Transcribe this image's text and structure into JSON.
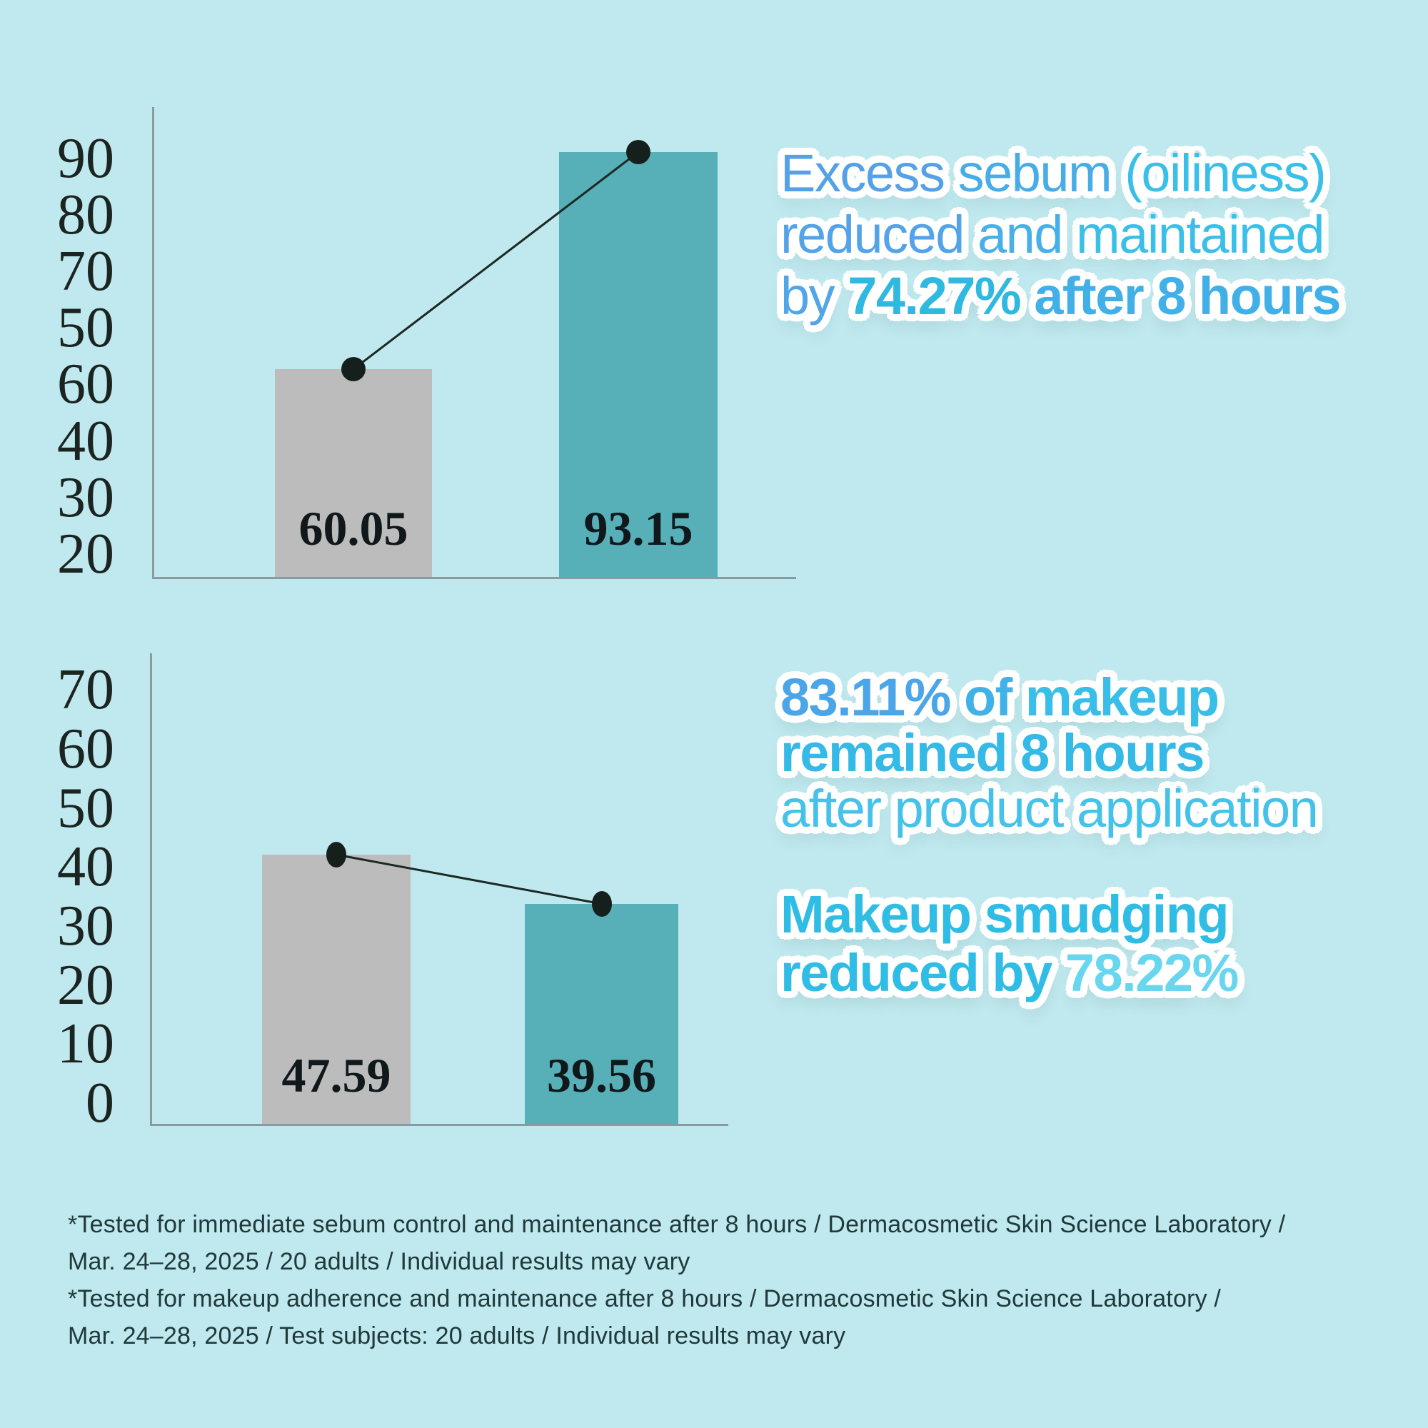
{
  "page": {
    "background": "#bfe9ee"
  },
  "palette": {
    "bar_gray": "#bcbcbc",
    "bar_teal": "#57b0b8",
    "axis_line": "#8a9ba0",
    "tick_text": "#1b2420",
    "bar_value_text": "#10181c",
    "connector": "#1c2824",
    "footnote_text": "#20393b",
    "headline_blue": "#54a2e8",
    "headline_cyan": "#38c0e8"
  },
  "chart_data": [
    {
      "type": "bar",
      "title": "",
      "y_tick_labels_as_printed": [
        "90",
        "80",
        "70",
        "50",
        "60",
        "40",
        "30",
        "20"
      ],
      "categories": [
        "",
        ""
      ],
      "values": [
        60.05,
        93.15
      ],
      "bar_labels": [
        "60.05",
        "93.15"
      ],
      "series_colors": [
        "#bcbcbc",
        "#57b0b8"
      ],
      "overlay": "line with dots connecting bar tops",
      "grid": false,
      "legend": false
    },
    {
      "type": "bar",
      "title": "",
      "y_tick_labels_as_printed": [
        "70",
        "60",
        "50",
        "40",
        "30",
        "20",
        "10",
        "0"
      ],
      "categories": [
        "",
        ""
      ],
      "values": [
        47.59,
        39.56
      ],
      "bar_labels": [
        "47.59",
        "39.56"
      ],
      "series_colors": [
        "#bcbcbc",
        "#57b0b8"
      ],
      "overlay": "line with dots connecting bar tops",
      "grid": false,
      "legend": false
    }
  ],
  "headlines": {
    "sebum": {
      "lines": [
        [
          {
            "t": "Excess ",
            "c": "#55a1e8",
            "b": 0
          },
          {
            "t": "sebum ",
            "c": "#47ade8",
            "b": 0
          },
          {
            "t": "(oiliness)",
            "c": "#39c0e8",
            "b": 0
          }
        ],
        [
          {
            "t": "reduced ",
            "c": "#53a3e8",
            "b": 0
          },
          {
            "t": "and ",
            "c": "#47b0e8",
            "b": 0
          },
          {
            "t": "maintained",
            "c": "#3ac0e8",
            "b": 0
          }
        ],
        [
          {
            "t": "by ",
            "c": "#50a6e8",
            "b": 0
          },
          {
            "t": "74.27%",
            "c": "#2fb9e0",
            "b": 1
          },
          {
            "t": " after 8 hours",
            "c": "#42b0e8",
            "b": 1
          }
        ]
      ]
    },
    "remained": {
      "lines": [
        [
          {
            "t": "83.11%",
            "c": "#4aa6e8",
            "b": 1
          },
          {
            "t": " of ",
            "c": "#41b2e8",
            "b": 1
          },
          {
            "t": "makeup",
            "c": "#38bee8",
            "b": 1
          }
        ],
        [
          {
            "t": "remained 8 hours",
            "c": "#35b9e7",
            "b": 1
          }
        ],
        [
          {
            "t": "after product application",
            "c": "#44c2ea",
            "b": 0
          }
        ]
      ]
    },
    "smudging": {
      "lines": [
        [
          {
            "t": "Makeup smudging",
            "c": "#2fbde6",
            "b": 1
          }
        ],
        [
          {
            "t": "reduced by ",
            "c": "#2fbde6",
            "b": 1
          },
          {
            "t": "78.22%",
            "c": "#69d6f0",
            "b": 1
          }
        ]
      ]
    }
  },
  "footnotes": [
    "*Tested for immediate sebum control and maintenance after 8 hours / Dermacosmetic Skin Science Laboratory /",
    "Mar. 24–28, 2025 / 20 adults / Individual results may vary",
    "*Tested for makeup adherence and maintenance after 8 hours / Dermacosmetic Skin Science Laboratory /",
    "Mar. 24–28, 2025 / Test subjects: 20 adults / Individual results may vary"
  ]
}
